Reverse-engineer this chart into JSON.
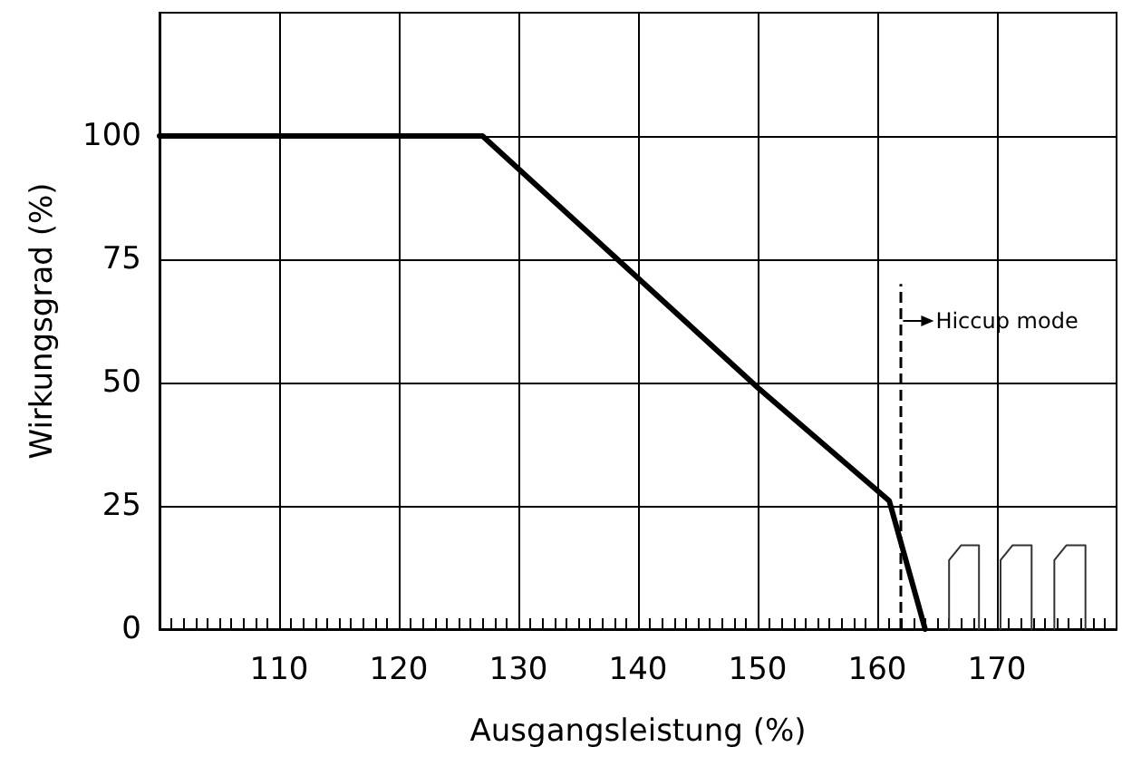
{
  "chart_data": {
    "type": "line",
    "xlabel": "Ausgangsleistung (%)",
    "ylabel": "Wirkungsgrad (%)",
    "xlim": [
      100,
      180
    ],
    "ylim": [
      0,
      125
    ],
    "xticks": [
      {
        "value": 101,
        "label": null
      },
      {
        "value": 102,
        "label": null
      },
      {
        "value": 103,
        "label": null
      },
      {
        "value": 104,
        "label": null
      },
      {
        "value": 105,
        "label": null
      },
      {
        "value": 106,
        "label": null
      },
      {
        "value": 107,
        "label": null
      },
      {
        "value": 108,
        "label": null
      },
      {
        "value": 109,
        "label": null
      },
      110,
      {
        "value": 111,
        "label": null
      },
      {
        "value": 112,
        "label": null
      },
      {
        "value": 113,
        "label": null
      },
      {
        "value": 114,
        "label": null
      },
      {
        "value": 115,
        "label": null
      },
      {
        "value": 116,
        "label": null
      },
      {
        "value": 117,
        "label": null
      },
      {
        "value": 118,
        "label": null
      },
      {
        "value": 119,
        "label": null
      },
      120,
      {
        "value": 121,
        "label": null
      },
      {
        "value": 122,
        "label": null
      },
      {
        "value": 123,
        "label": null
      },
      {
        "value": 124,
        "label": null
      },
      {
        "value": 125,
        "label": null
      },
      {
        "value": 126,
        "label": null
      },
      {
        "value": 127,
        "label": null
      },
      {
        "value": 128,
        "label": null
      },
      {
        "value": 129,
        "label": null
      },
      130,
      {
        "value": 131,
        "label": null
      },
      {
        "value": 132,
        "label": null
      },
      {
        "value": 133,
        "label": null
      },
      {
        "value": 134,
        "label": null
      },
      {
        "value": 135,
        "label": null
      },
      {
        "value": 136,
        "label": null
      },
      {
        "value": 137,
        "label": null
      },
      {
        "value": 138,
        "label": null
      },
      {
        "value": 139,
        "label": null
      },
      140,
      {
        "value": 141,
        "label": null
      },
      {
        "value": 142,
        "label": null
      },
      {
        "value": 143,
        "label": null
      },
      {
        "value": 144,
        "label": null
      },
      {
        "value": 145,
        "label": null
      },
      {
        "value": 146,
        "label": null
      },
      {
        "value": 147,
        "label": null
      },
      {
        "value": 148,
        "label": null
      },
      {
        "value": 149,
        "label": null
      },
      150,
      {
        "value": 151,
        "label": null
      },
      {
        "value": 152,
        "label": null
      },
      {
        "value": 153,
        "label": null
      },
      {
        "value": 154,
        "label": null
      },
      {
        "value": 155,
        "label": null
      },
      {
        "value": 156,
        "label": null
      },
      {
        "value": 157,
        "label": null
      },
      {
        "value": 158,
        "label": null
      },
      {
        "value": 159,
        "label": null
      },
      160,
      {
        "value": 161,
        "label": null
      },
      {
        "value": 162,
        "label": null
      },
      {
        "value": 163,
        "label": null
      },
      {
        "value": 164,
        "label": null
      },
      {
        "value": 165,
        "label": null
      },
      {
        "value": 166,
        "label": null
      },
      {
        "value": 167,
        "label": null
      },
      {
        "value": 168,
        "label": null
      },
      {
        "value": 169,
        "label": null
      },
      170,
      {
        "value": 171,
        "label": null
      },
      {
        "value": 172,
        "label": null
      },
      {
        "value": 173,
        "label": null
      },
      {
        "value": 174,
        "label": null
      },
      {
        "value": 175,
        "label": null
      },
      {
        "value": 176,
        "label": null
      },
      {
        "value": 177,
        "label": null
      },
      {
        "value": 178,
        "label": null
      },
      {
        "value": 179,
        "label": null
      }
    ],
    "yticks": [
      0,
      25,
      50,
      75,
      100
    ],
    "grid": true,
    "marker": "none",
    "line_style": "solid",
    "series": [
      {
        "color": "#000000",
        "x": [
          100,
          127,
          150,
          161,
          164
        ],
        "values": [
          100,
          100,
          49,
          26,
          0
        ]
      },
      {
        "color": "#333333",
        "x": [
          166,
          166,
          167,
          168.5,
          168.5,
          169.5,
          170.3,
          170.3,
          171.3,
          172.9,
          172.9,
          174,
          174.8,
          174.8,
          175.8,
          177.4,
          177.4
        ],
        "values": [
          0,
          14,
          17,
          17,
          0,
          null,
          0,
          14,
          17,
          17,
          0,
          null,
          0,
          14,
          17,
          17,
          0
        ]
      }
    ],
    "ref_lines": [
      {
        "axis": "x",
        "value": 162,
        "label": "Hiccup mode",
        "line_style": "dashed",
        "color": "#000000"
      }
    ]
  }
}
